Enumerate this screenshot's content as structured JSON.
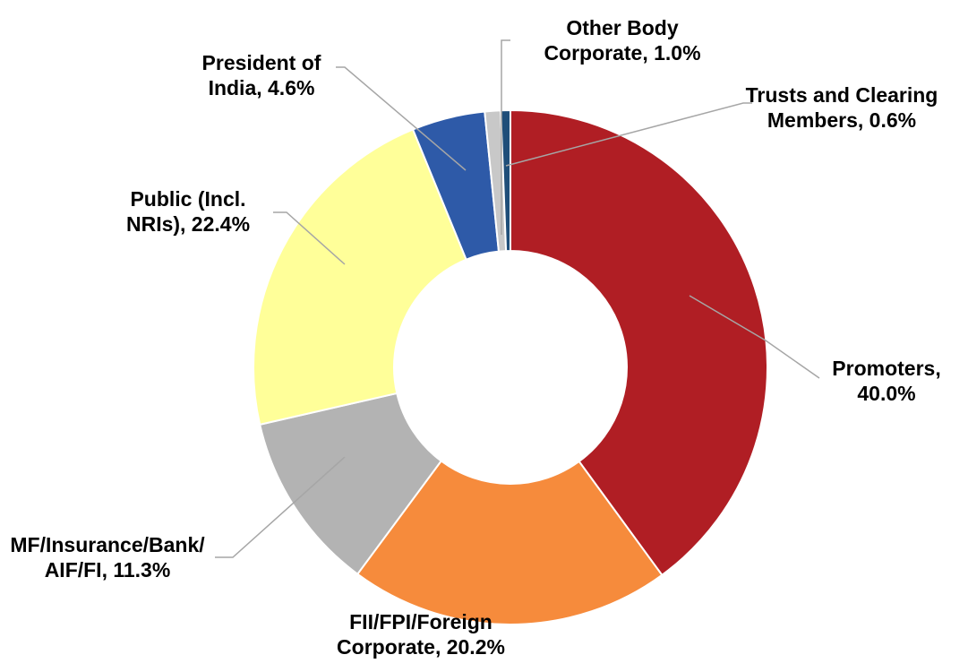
{
  "chart_data": {
    "type": "donut",
    "categories": [
      "Promoters",
      "FII/FPI/Foreign Corporate",
      "MF/Insurance/Bank/AIF/FI",
      "Public (Incl. NRIs)",
      "President of India",
      "Other Body Corporate",
      "Trusts and Clearing Members"
    ],
    "values": [
      40.0,
      20.2,
      11.3,
      22.4,
      4.6,
      1.0,
      0.6
    ],
    "value_labels": [
      "Promoters, 40.0%",
      "FII/FPI/Foreign Corporate, 20.2%",
      "MF/Insurance/Bank/AIF/FI, 11.3%",
      "Public (Incl. NRIs), 22.4%",
      "President of India, 4.6%",
      "Other Body Corporate, 1.0%",
      "Trusts and Clearing Members, 0.6%"
    ],
    "colors": [
      "#b01e24",
      "#f68b3c",
      "#b3b3b3",
      "#ffff99",
      "#2e5aa8",
      "#c8c8c8",
      "#1f4e79"
    ]
  }
}
